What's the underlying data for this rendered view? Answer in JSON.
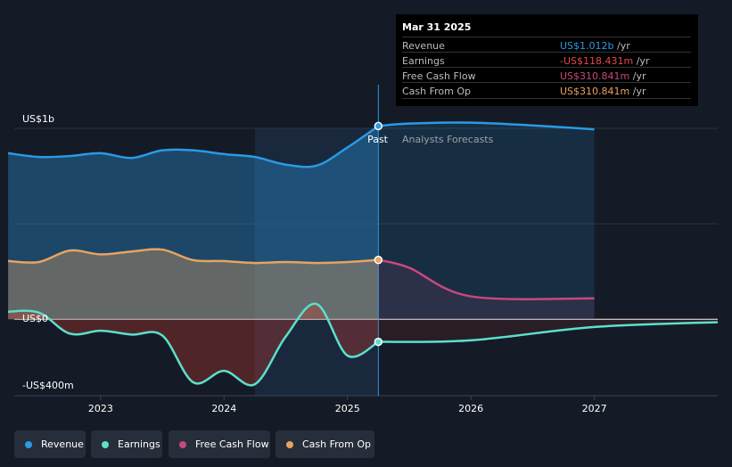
{
  "colors": {
    "revenue": "#2a9ae5",
    "earnings": "#5be0cc",
    "fcf": "#c5497d",
    "cfo": "#e8a361",
    "background": "#151b26"
  },
  "y_labels": {
    "top": "US$1b",
    "zero": "US$0",
    "bottom": "-US$400m"
  },
  "regions": {
    "past": "Past",
    "forecast": "Analysts Forecasts"
  },
  "tooltip": {
    "date": "Mar 31 2025",
    "rows": [
      {
        "label": "Revenue",
        "value": "US$1.012b",
        "unit": " /yr",
        "color": "#2a9ae5"
      },
      {
        "label": "Earnings",
        "value": "-US$118.431m",
        "unit": " /yr",
        "color": "#e5484d"
      },
      {
        "label": "Free Cash Flow",
        "value": "US$310.841m",
        "unit": " /yr",
        "color": "#c5497d"
      },
      {
        "label": "Cash From Op",
        "value": "US$310.841m",
        "unit": " /yr",
        "color": "#e8a361"
      }
    ]
  },
  "legend": [
    {
      "label": "Revenue",
      "color": "#2a9ae5"
    },
    {
      "label": "Earnings",
      "color": "#5be0cc"
    },
    {
      "label": "Free Cash Flow",
      "color": "#c5497d"
    },
    {
      "label": "Cash From Op",
      "color": "#e8a361"
    }
  ],
  "chart_data": {
    "type": "line",
    "ylim": [
      -400,
      1000
    ],
    "xlim": [
      2022.3,
      2028.0
    ],
    "x_ticks": [
      2023,
      2024,
      2025,
      2026,
      2027
    ],
    "x_tick_labels": [
      "2023",
      "2024",
      "2025",
      "2026",
      "2027"
    ],
    "grid": true,
    "legend_position": "bottom",
    "past_end": 2025.25,
    "shaded_start": 2024.25,
    "series": [
      {
        "name": "Revenue",
        "key": "revenue",
        "past": [
          [
            2022.25,
            870
          ],
          [
            2022.5,
            850
          ],
          [
            2022.75,
            855
          ],
          [
            2023.0,
            870
          ],
          [
            2023.25,
            845
          ],
          [
            2023.5,
            885
          ],
          [
            2023.75,
            885
          ],
          [
            2024.0,
            865
          ],
          [
            2024.25,
            850
          ],
          [
            2024.5,
            810
          ],
          [
            2024.75,
            805
          ],
          [
            2025.0,
            900
          ],
          [
            2025.25,
            1012
          ]
        ],
        "forecast": [
          [
            2025.25,
            1012
          ],
          [
            2025.5,
            1025
          ],
          [
            2026.0,
            1030
          ],
          [
            2026.5,
            1015
          ],
          [
            2027.0,
            995
          ]
        ]
      },
      {
        "name": "Earnings",
        "key": "earnings",
        "past": [
          [
            2022.25,
            40
          ],
          [
            2022.5,
            35
          ],
          [
            2022.75,
            -75
          ],
          [
            2023.0,
            -60
          ],
          [
            2023.25,
            -80
          ],
          [
            2023.5,
            -85
          ],
          [
            2023.75,
            -330
          ],
          [
            2024.0,
            -270
          ],
          [
            2024.25,
            -340
          ],
          [
            2024.5,
            -90
          ],
          [
            2024.75,
            80
          ],
          [
            2025.0,
            -190
          ],
          [
            2025.25,
            -118
          ]
        ],
        "forecast": [
          [
            2025.25,
            -118
          ],
          [
            2026.0,
            -110
          ],
          [
            2027.0,
            -40
          ],
          [
            2028.0,
            -15
          ]
        ]
      },
      {
        "name": "Free Cash Flow",
        "key": "fcf",
        "past": [],
        "forecast": [
          [
            2025.25,
            311
          ],
          [
            2025.5,
            270
          ],
          [
            2026.0,
            120
          ],
          [
            2027.0,
            110
          ]
        ]
      },
      {
        "name": "Cash From Op",
        "key": "cfo",
        "past": [
          [
            2022.25,
            305
          ],
          [
            2022.5,
            300
          ],
          [
            2022.75,
            360
          ],
          [
            2023.0,
            340
          ],
          [
            2023.25,
            355
          ],
          [
            2023.5,
            365
          ],
          [
            2023.75,
            310
          ],
          [
            2024.0,
            305
          ],
          [
            2024.25,
            295
          ],
          [
            2024.5,
            300
          ],
          [
            2024.75,
            295
          ],
          [
            2025.0,
            300
          ],
          [
            2025.25,
            311
          ]
        ],
        "forecast": []
      }
    ],
    "markers": [
      {
        "key": "revenue",
        "x": 2025.25,
        "y": 1012
      },
      {
        "key": "cfo",
        "x": 2025.25,
        "y": 311
      },
      {
        "key": "earnings",
        "x": 2025.25,
        "y": -118
      }
    ]
  }
}
